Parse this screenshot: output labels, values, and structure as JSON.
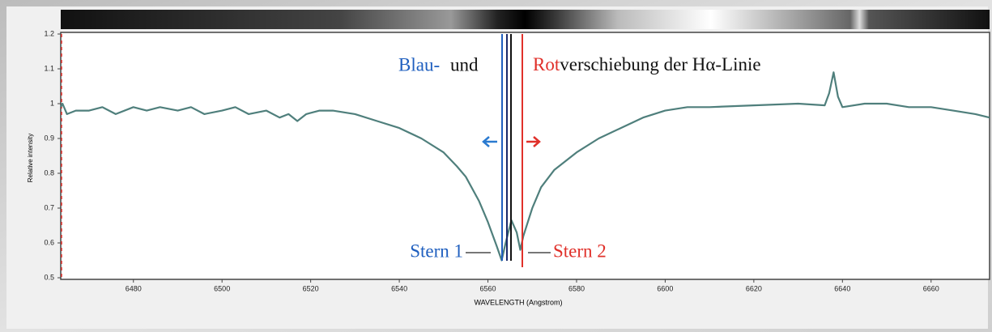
{
  "chart_data": {
    "type": "line",
    "xlabel": "WAVELENGTH (Angstrom)",
    "ylabel": "Relative intensity",
    "annotations": {
      "blue_word": "Blau-",
      "and_word": "und",
      "red_word": "Rot",
      "rest": "verschiebung der Hα-Linie",
      "star1": "Stern 1",
      "star2": "Stern 2"
    },
    "color": "#4f7f7c",
    "x": [
      6463.6,
      6464,
      6465,
      6467,
      6470,
      6473,
      6476,
      6480,
      6483,
      6486,
      6490,
      6493,
      6496,
      6500,
      6503,
      6506,
      6510,
      6513,
      6515,
      6517,
      6519,
      6522,
      6525,
      6530,
      6535,
      6540,
      6545,
      6550,
      6553,
      6555,
      6558,
      6560,
      6562,
      6563.1,
      6564,
      6565.3,
      6566.5,
      6567.3,
      6568,
      6570,
      6572,
      6575,
      6580,
      6585,
      6590,
      6595,
      6600,
      6605,
      6610,
      6620,
      6630,
      6636,
      6637,
      6638,
      6639,
      6640,
      6645,
      6650,
      6655,
      6660,
      6665,
      6670,
      6673.2
    ],
    "values": [
      0.99,
      1.0,
      0.97,
      0.98,
      0.98,
      0.99,
      0.97,
      0.99,
      0.98,
      0.99,
      0.98,
      0.99,
      0.97,
      0.98,
      0.99,
      0.97,
      0.98,
      0.96,
      0.97,
      0.95,
      0.97,
      0.98,
      0.98,
      0.97,
      0.95,
      0.93,
      0.9,
      0.86,
      0.82,
      0.79,
      0.72,
      0.66,
      0.59,
      0.55,
      0.6,
      0.665,
      0.63,
      0.58,
      0.62,
      0.7,
      0.76,
      0.81,
      0.86,
      0.9,
      0.93,
      0.96,
      0.98,
      0.99,
      0.99,
      0.995,
      1.0,
      0.995,
      1.03,
      1.09,
      1.02,
      0.99,
      1.0,
      1.0,
      0.99,
      0.99,
      0.98,
      0.97,
      0.96
    ],
    "xlim": [
      6463.6,
      6673.2
    ],
    "ylim": [
      0.5,
      1.2
    ],
    "xticks": [
      6480,
      6500,
      6520,
      6540,
      6560,
      6580,
      6600,
      6620,
      6640,
      6660
    ],
    "yticks": [
      0.5,
      0.6,
      0.7,
      0.8,
      0.9,
      1,
      1.1,
      1.2
    ]
  }
}
